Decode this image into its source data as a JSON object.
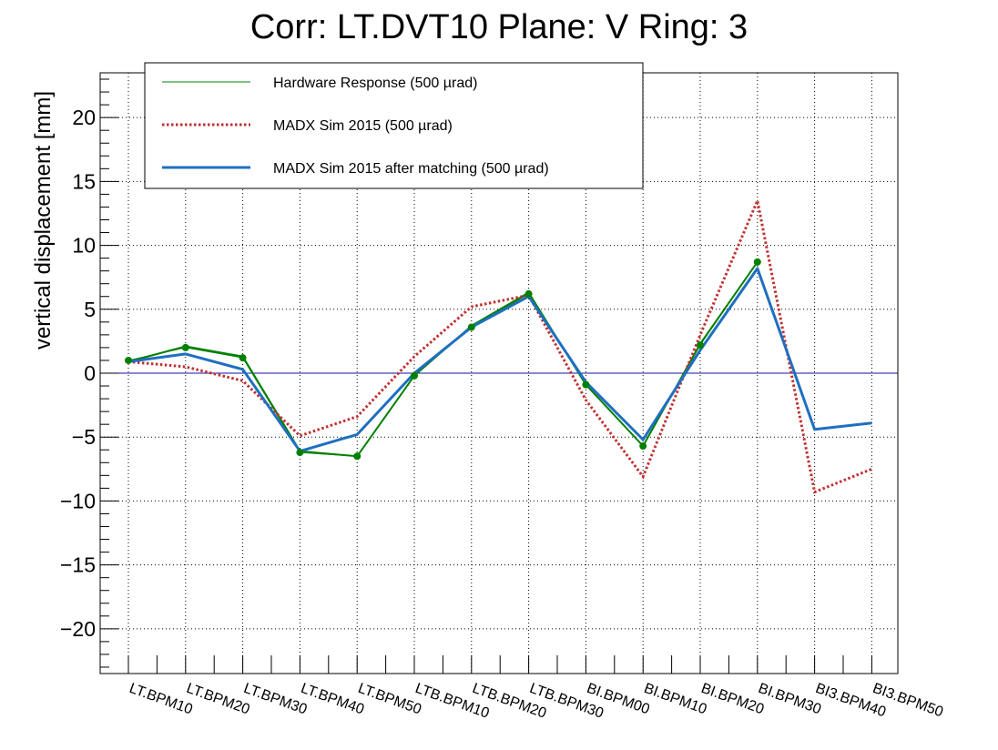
{
  "chart_data": {
    "type": "line",
    "title": "Corr: LT.DVT10 Plane: V Ring: 3",
    "xlabel": "",
    "ylabel": "vertical displacement [mm]",
    "ylim": [
      -23.5,
      23.5
    ],
    "y_ticks": [
      -20,
      -15,
      -10,
      -5,
      0,
      5,
      10,
      15,
      20
    ],
    "y_tick_labels": [
      "−20",
      "−15",
      "−10",
      "−5",
      "0",
      "5",
      "10",
      "15",
      "20"
    ],
    "grid": true,
    "legend_position": "top-left",
    "zero_line": true,
    "categories": [
      "LT.BPM10",
      "LT.BPM20",
      "LT.BPM30",
      "LT.BPM40",
      "LT.BPM50",
      "LTB.BPM10",
      "LTB.BPM20",
      "LTB.BPM30",
      "BI.BPM00",
      "BI.BPM10",
      "BI.BPM20",
      "BI.BPM30",
      "BI3.BPM40",
      "BI3.BPM50"
    ],
    "series": [
      {
        "name": "Hardware Response (500 µrad)",
        "color": "#008000",
        "style": "solid-thin-markers",
        "values": [
          1.0,
          2.0,
          1.2,
          -6.2,
          -6.5,
          -0.2,
          3.6,
          6.2,
          -0.9,
          -5.7,
          2.2,
          8.7,
          null,
          null
        ],
        "band_values": [
          0.9,
          2.1,
          1.3,
          -6.1,
          -6.5,
          -0.2,
          3.7,
          6.3,
          -0.9,
          -5.7,
          2.3,
          8.7,
          null,
          null
        ]
      },
      {
        "name": "MADX Sim 2015 (500 µrad)",
        "color": "#c03030",
        "style": "dotted",
        "values": [
          0.9,
          0.5,
          -0.6,
          -4.9,
          -3.4,
          1.3,
          5.2,
          6.1,
          -2.1,
          -8.1,
          3.0,
          13.5,
          -9.3,
          -7.5
        ]
      },
      {
        "name": "MADX Sim 2015 after matching (500 µrad)",
        "color": "#1f6fc0",
        "style": "solid-thick",
        "values": [
          0.9,
          1.5,
          0.3,
          -6.1,
          -4.8,
          0.0,
          3.6,
          6.0,
          -0.7,
          -5.2,
          1.8,
          8.2,
          -4.4,
          -3.9
        ]
      }
    ]
  }
}
